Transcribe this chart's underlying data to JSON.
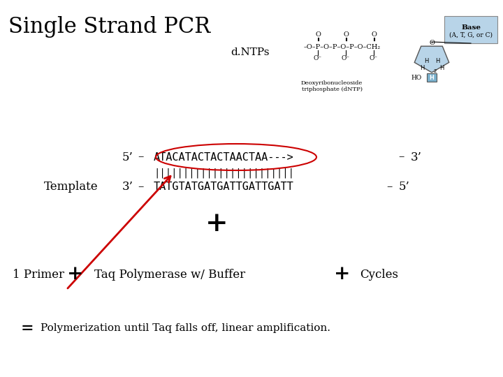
{
  "title": "Single Strand PCR",
  "dntps_label": "d.NTPs",
  "top_strand_prefix": "5’  –  ",
  "top_strand_seq": "ATACATACTACTAACTAA--->",
  "top_strand_suffix": "  –  3’",
  "connectors": "||||||||||||||||||||||||",
  "bottom_strand_prefix": "3’  –  ",
  "bottom_strand_seq": "TATGTATGATGATTGATTGATT",
  "bottom_strand_suffix": "  –  5’",
  "template_label": "Template",
  "plus_mid": "+",
  "primer_label": "1 Primer",
  "plus_label": "+",
  "taq_label": "Taq Polymerase w/ Buffer",
  "cycles_label": "Cycles",
  "equals_label": "=",
  "result_label": "Polymerization until Taq falls off, linear amplification.",
  "bg_color": "#ffffff",
  "text_color": "#000000",
  "arrow_color": "#cc0000",
  "oval_color": "#cc0000",
  "base_box_color": "#b8d4e8",
  "sugar_color": "#b8d4e8",
  "h_box_color": "#7ab0cc"
}
